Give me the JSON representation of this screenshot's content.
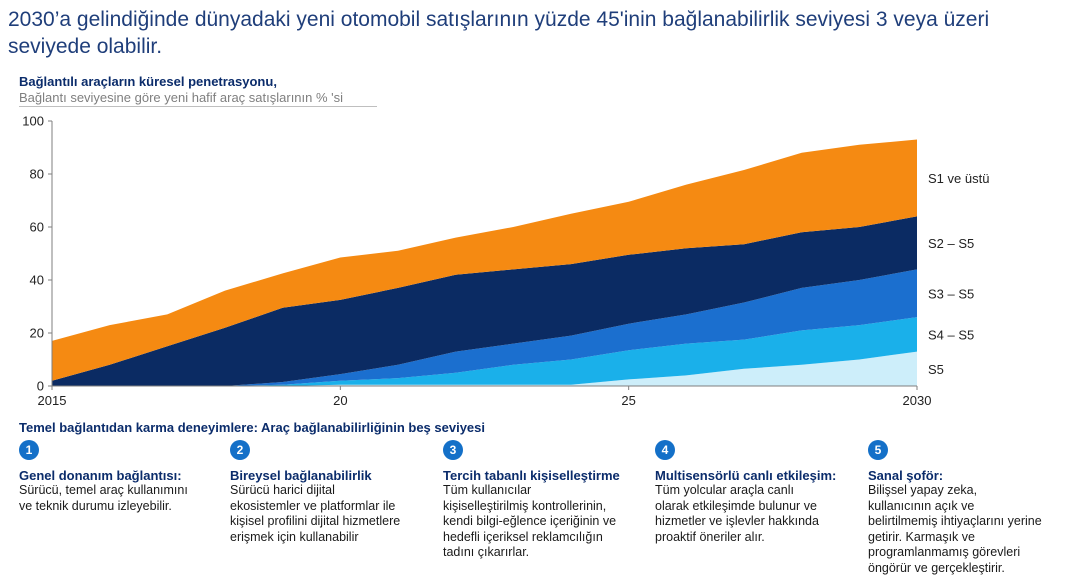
{
  "headline": "2030’a gelindiğinde dünyadaki yeni otomobil satışlarının yüzde 45'inin bağlanabilirlik seviyesi 3 veya üzeri seviyede olabilir.",
  "chart_data": {
    "type": "area",
    "stacked": true,
    "title": "Bağlantılı araçların küresel penetrasyonu,",
    "subtitle": "Bağlantı seviyesine göre yeni hafif araç satışlarının  % 'si",
    "x": [
      2015,
      2016,
      2017,
      2018,
      2019,
      2020,
      2021,
      2022,
      2023,
      2024,
      2025,
      2026,
      2027,
      2028,
      2029,
      2030
    ],
    "ylim": [
      0,
      100
    ],
    "yticks": [
      "0",
      "20",
      "40",
      "60",
      "80",
      "100"
    ],
    "xtick_values": [
      2015,
      2020,
      2025,
      2030
    ],
    "xticks": [
      "2015",
      "20",
      "25",
      "2030"
    ],
    "grid": false,
    "legend": "right-side labels",
    "series": [
      {
        "name": "S5",
        "color": "#cdeefa",
        "values": [
          0,
          0,
          0,
          0,
          0,
          0.5,
          0.5,
          0.5,
          0.5,
          0.5,
          2.5,
          4,
          6.5,
          8,
          10,
          13
        ]
      },
      {
        "name": "S4 – S5",
        "color": "#1ab0ea",
        "values": [
          0,
          0,
          0,
          0,
          0.5,
          1.5,
          2.5,
          4.5,
          7.5,
          9.5,
          11,
          12,
          11,
          13,
          13,
          13
        ]
      },
      {
        "name": "S3 – S5",
        "color": "#1b6fcf",
        "values": [
          0,
          0,
          0,
          0,
          1,
          2.5,
          5,
          8,
          8,
          9,
          10,
          11,
          14,
          16,
          17,
          18
        ]
      },
      {
        "name": "S2 – S5",
        "color": "#0b2b63",
        "values": [
          2,
          8,
          15,
          22,
          28,
          28,
          29,
          29,
          28,
          27,
          26,
          25,
          22,
          21,
          20,
          20
        ]
      },
      {
        "name": "S1  ve üstü",
        "color": "#f58a12",
        "values": [
          15,
          15,
          12,
          14,
          13,
          16,
          14,
          14,
          16,
          19,
          20,
          24,
          28,
          30,
          31,
          29
        ]
      }
    ],
    "side_labels": [
      "S1  ve üstü",
      "S2 – S5",
      "S3 – S5",
      "S4 – S5",
      "S5"
    ]
  },
  "section_title": "Temel bağlantıdan karma deneyimlere: Araç bağlanabilirliğinin  beş seviyesi",
  "levels": [
    {
      "num": "1",
      "name": "Genel donanım bağlantısı:",
      "desc": [
        "Sürücü, temel araç kullanımını",
        "ve teknik durumu  izleyebilir."
      ]
    },
    {
      "num": "2",
      "name": "Bireysel bağlanabilirlik",
      "desc": [
        "Sürücü harici dijital",
        "ekosistemler ve platformlar  ile",
        "kişisel profilini dijital hizmetlere",
        "erişmek için kullanabilir"
      ]
    },
    {
      "num": "3",
      "name": "Tercih tabanlı kişiselleştirme",
      "desc": [
        "Tüm kullanıcılar",
        "kişiselleştirilmiş kontrollerinin,",
        "kendi bilgi-eğlence içeriğinin ve",
        "hedefli içeriksel reklamcılığın",
        "tadını  çıkarırlar."
      ]
    },
    {
      "num": "4",
      "name": "Multisensörlü canlı etkileşim:",
      "desc": [
        "Tüm yolcular  araçla canlı",
        "olarak etkileşimde bulunur  ve",
        "hizmetler  ve işlevler hakkında",
        "proaktif öneriler alır."
      ]
    },
    {
      "num": "5",
      "name": "Sanal şoför:",
      "desc": [
        "Bilişsel yapay zeka,",
        "kullanıcının   açık ve",
        "belirtilmemiş ihtiyaçlarını  yerine",
        "getirir. Karmaşık ve",
        "programlanmamış  görevleri",
        "öngörür ve gerçekleştirir."
      ]
    }
  ]
}
